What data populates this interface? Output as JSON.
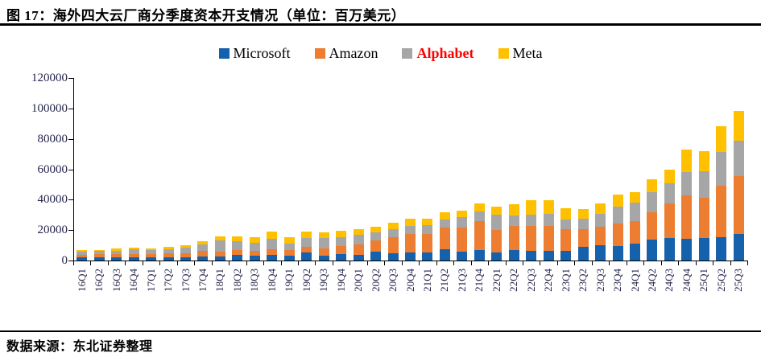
{
  "header": {
    "title": "图 17：海外四大云厂商分季度资本开支情况（单位：百万美元）"
  },
  "footer": {
    "source": "数据来源：东北证券整理"
  },
  "legend": {
    "position": "top",
    "items": [
      {
        "label": "Microsoft",
        "swatch": "#1661AC",
        "text_color": "#000000",
        "bold": false
      },
      {
        "label": "Amazon",
        "swatch": "#ED7D31",
        "text_color": "#000000",
        "bold": false
      },
      {
        "label": "Alphabet",
        "swatch": "#A6A6A6",
        "text_color": "#FF0000",
        "bold": true
      },
      {
        "label": "Meta",
        "swatch": "#FFC000",
        "text_color": "#000000",
        "bold": false
      }
    ]
  },
  "chart_data": {
    "type": "bar",
    "stacked": true,
    "title": "图 17：海外四大云厂商分季度资本开支情况（单位：百万美元）",
    "xlabel": "",
    "ylabel": "",
    "grid": false,
    "legend_position": "top",
    "ylim": [
      0,
      120000
    ],
    "yticks": [
      0,
      20000,
      40000,
      60000,
      80000,
      100000,
      120000
    ],
    "categories": [
      "16Q1",
      "16Q2",
      "16Q3",
      "16Q4",
      "17Q1",
      "17Q2",
      "17Q3",
      "17Q4",
      "18Q1",
      "18Q2",
      "18Q3",
      "18Q4",
      "19Q1",
      "19Q2",
      "19Q3",
      "19Q4",
      "20Q1",
      "20Q2",
      "20Q3",
      "20Q4",
      "21Q1",
      "21Q2",
      "21Q3",
      "21Q4",
      "22Q1",
      "22Q2",
      "22Q3",
      "22Q4",
      "23Q1",
      "23Q2",
      "23Q3",
      "23Q4",
      "24Q1",
      "24Q2",
      "24Q3",
      "24Q4",
      "25Q1",
      "25Q2",
      "25Q3"
    ],
    "series": [
      {
        "name": "Microsoft",
        "color": "#1661AC",
        "values": [
          2300,
          2300,
          2100,
          2200,
          2100,
          2300,
          2100,
          2600,
          2900,
          3900,
          3200,
          3700,
          3400,
          5300,
          3400,
          4400,
          3900,
          5800,
          4900,
          5400,
          5100,
          7300,
          5800,
          6800,
          5300,
          6900,
          6300,
          6300,
          6600,
          8900,
          9900,
          9700,
          11000,
          13900,
          14900,
          14500,
          15000,
          15500,
          17600
        ]
      },
      {
        "name": "Amazon",
        "color": "#ED7D31",
        "values": [
          1200,
          1700,
          1900,
          2000,
          2200,
          2500,
          2700,
          3600,
          3100,
          3200,
          3400,
          3700,
          3300,
          3600,
          4700,
          5100,
          6800,
          7500,
          10500,
          12100,
          12100,
          14200,
          15700,
          19100,
          14900,
          15700,
          16400,
          16600,
          14200,
          11500,
          12500,
          14600,
          15000,
          17600,
          22600,
          28500,
          26000,
          33500,
          38000
        ]
      },
      {
        "name": "Alphabet",
        "color": "#A6A6A6",
        "values": [
          2400,
          2100,
          2600,
          3100,
          2500,
          2800,
          3500,
          4300,
          7300,
          5500,
          5300,
          7100,
          4600,
          6100,
          6700,
          6100,
          6000,
          5400,
          5400,
          5500,
          5900,
          5500,
          6800,
          6400,
          9800,
          6800,
          7300,
          7600,
          6300,
          6900,
          8100,
          11000,
          12000,
          13200,
          13100,
          15000,
          17500,
          22500,
          23000
        ]
      },
      {
        "name": "Meta",
        "color": "#FFC000",
        "values": [
          1100,
          1000,
          1100,
          1300,
          1300,
          1400,
          1800,
          2300,
          2800,
          3500,
          3300,
          4400,
          3800,
          3800,
          3700,
          4000,
          3700,
          3400,
          3900,
          4700,
          4300,
          4500,
          4500,
          5400,
          5500,
          7700,
          9500,
          9000,
          7100,
          6400,
          6800,
          7900,
          6700,
          8500,
          9200,
          15000,
          13300,
          17000,
          19500
        ]
      }
    ]
  }
}
